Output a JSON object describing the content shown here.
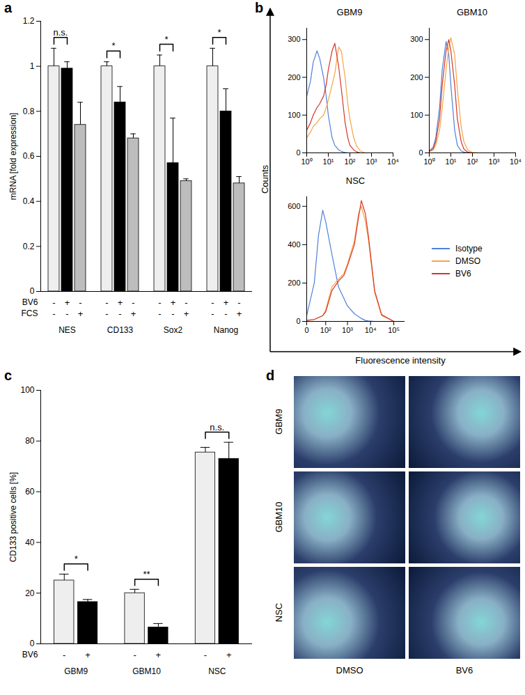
{
  "chart_data": [
    {
      "panel": "a",
      "type": "bar",
      "ylabel": "mRNA [fold expression]",
      "categories": [
        "NES",
        "CD133",
        "Sox2",
        "Nanog"
      ],
      "series": [
        {
          "color": "#eeeeee",
          "values": [
            1.0,
            1.0,
            1.0,
            1.0
          ],
          "errors": [
            0.08,
            0.02,
            0.05,
            0.08
          ]
        },
        {
          "color": "#000000",
          "values": [
            0.99,
            0.84,
            0.57,
            0.8
          ],
          "errors": [
            0.03,
            0.07,
            0.2,
            0.1
          ]
        },
        {
          "color": "#bdbdbd",
          "values": [
            0.74,
            0.68,
            0.49,
            0.48
          ],
          "errors": [
            0.1,
            0.02,
            0.01,
            0.03
          ]
        }
      ],
      "significance": [
        "n.s.",
        "*",
        "*",
        "*"
      ],
      "treatment_rows": [
        {
          "name": "BV6",
          "marks": [
            "-",
            "+",
            "-"
          ]
        },
        {
          "name": "FCS",
          "marks": [
            "-",
            "-",
            "+"
          ]
        }
      ],
      "ylim": [
        0,
        1.2
      ],
      "yticks": [
        0,
        0.2,
        0.4,
        0.6,
        0.8,
        1,
        1.2
      ]
    },
    {
      "panel": "b",
      "type": "line",
      "ylabel": "Counts",
      "xlabel": "Fluorescence intensity",
      "charts": [
        {
          "title": "GBM9",
          "log": "x",
          "xlim": [
            1,
            10000
          ],
          "ylim": [
            0,
            330
          ],
          "xticks": [
            {
              "value": 1,
              "label": "10⁰"
            },
            {
              "value": 10,
              "label": "10¹"
            },
            {
              "value": 100,
              "label": "10²"
            },
            {
              "value": 1000,
              "label": "10³"
            },
            {
              "value": 10000,
              "label": "10⁴"
            }
          ],
          "yticks": [
            0,
            100,
            200,
            300
          ],
          "x": [
            1,
            1.5,
            2,
            3,
            4,
            6,
            8,
            10,
            15,
            20,
            30,
            40,
            60,
            80,
            100,
            150,
            200,
            300,
            500
          ],
          "series": [
            {
              "name": "Isotype",
              "color": "#4f81d8",
              "values": [
                150,
                190,
                240,
                270,
                250,
                200,
                150,
                100,
                40,
                20,
                8,
                4,
                1,
                0,
                0,
                0,
                0,
                0,
                0
              ]
            },
            {
              "name": "DMSO",
              "color": "#f5a540",
              "values": [
                40,
                55,
                70,
                80,
                90,
                100,
                120,
                140,
                180,
                210,
                280,
                270,
                200,
                130,
                90,
                40,
                20,
                5,
                0
              ]
            },
            {
              "name": "BV6",
              "color": "#d8352a",
              "values": [
                60,
                80,
                100,
                120,
                130,
                150,
                180,
                220,
                270,
                290,
                230,
                170,
                80,
                40,
                20,
                8,
                3,
                0,
                0
              ]
            }
          ]
        },
        {
          "title": "GBM10",
          "log": "x",
          "xlim": [
            1,
            10000
          ],
          "ylim": [
            0,
            330
          ],
          "xticks": [
            {
              "value": 1,
              "label": "10⁰"
            },
            {
              "value": 10,
              "label": "10¹"
            },
            {
              "value": 100,
              "label": "10²"
            },
            {
              "value": 1000,
              "label": "10³"
            },
            {
              "value": 10000,
              "label": "10⁴"
            }
          ],
          "yticks": [
            0,
            100,
            200,
            300
          ],
          "x": [
            1,
            1.5,
            2,
            3,
            4,
            6,
            8,
            10,
            15,
            20,
            30,
            40,
            60,
            100,
            200
          ],
          "series": [
            {
              "name": "Isotype",
              "color": "#4f81d8",
              "values": [
                5,
                15,
                40,
                120,
                220,
                295,
                260,
                180,
                60,
                20,
                5,
                2,
                0,
                0,
                0
              ]
            },
            {
              "name": "DMSO",
              "color": "#f5a540",
              "values": [
                3,
                8,
                20,
                60,
                120,
                220,
                280,
                305,
                260,
                170,
                70,
                30,
                8,
                1,
                0
              ]
            },
            {
              "name": "BV6",
              "color": "#d8352a",
              "values": [
                4,
                10,
                30,
                90,
                180,
                270,
                300,
                270,
                180,
                90,
                30,
                10,
                2,
                0,
                0
              ]
            }
          ]
        },
        {
          "title": "NSC",
          "log": "x",
          "xlim": [
            0,
            300000
          ],
          "ylim": [
            0,
            650
          ],
          "xticks": [
            0,
            {
              "value": 100,
              "label": "10²"
            },
            {
              "value": 1000,
              "label": "10³"
            },
            {
              "value": 10000,
              "label": "10⁴"
            },
            {
              "value": 100000,
              "label": "10⁵"
            }
          ],
          "yticks": [
            0,
            200,
            400,
            600
          ],
          "x": [
            0,
            20,
            40,
            70,
            100,
            200,
            400,
            700,
            1000,
            2000,
            3000,
            4000,
            6000,
            8000,
            15000,
            30000,
            100000
          ],
          "series": [
            {
              "name": "Isotype",
              "color": "#4f81d8",
              "values": [
                30,
                200,
                450,
                580,
                520,
                350,
                180,
                120,
                80,
                40,
                25,
                15,
                5,
                2,
                0,
                0,
                0
              ]
            },
            {
              "name": "DMSO",
              "color": "#f5a540",
              "values": [
                5,
                10,
                20,
                30,
                60,
                180,
                220,
                250,
                300,
                420,
                560,
                600,
                520,
                430,
                150,
                30,
                0
              ]
            },
            {
              "name": "BV6",
              "color": "#d8352a",
              "values": [
                5,
                10,
                20,
                30,
                50,
                160,
                210,
                240,
                290,
                400,
                540,
                630,
                560,
                450,
                160,
                35,
                0
              ]
            }
          ]
        }
      ]
    },
    {
      "panel": "c",
      "type": "bar",
      "ylabel": "CD133 positive cells [%]",
      "categories": [
        "GBM9",
        "GBM10",
        "NSC"
      ],
      "series": [
        {
          "color": "#eeeeee",
          "values": [
            25,
            20,
            75.5
          ],
          "errors": [
            2.5,
            1.5,
            2
          ]
        },
        {
          "color": "#000000",
          "values": [
            16.5,
            6.5,
            73
          ],
          "errors": [
            1,
            1.5,
            6.5
          ]
        }
      ],
      "significance": [
        "*",
        "**",
        "n.s."
      ],
      "treatment_rows": [
        {
          "name": "BV6",
          "marks": [
            "-",
            "+"
          ]
        }
      ],
      "ylim": [
        0,
        100
      ],
      "yticks": [
        0,
        20,
        40,
        60,
        80,
        100
      ]
    },
    {
      "panel": "d",
      "type": "image_grid",
      "rows": [
        "GBM9",
        "GBM10",
        "NSC"
      ],
      "columns": [
        "DMSO",
        "BV6"
      ]
    }
  ]
}
